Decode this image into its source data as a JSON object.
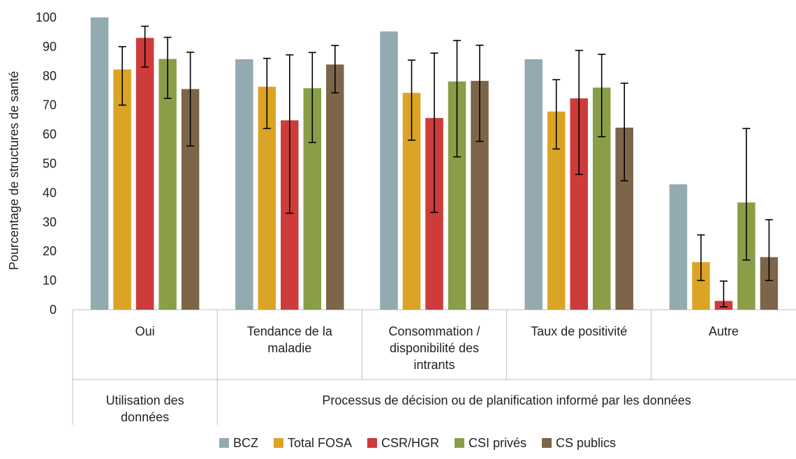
{
  "chart_data": {
    "type": "bar",
    "ylabel": "Pourcentage de structures de santé",
    "ylim": [
      0,
      100
    ],
    "yticks": [
      0,
      10,
      20,
      30,
      40,
      50,
      60,
      70,
      80,
      90,
      100
    ],
    "grid": false,
    "legend_position": "bottom",
    "categories": [
      [
        "Oui"
      ],
      [
        "Tendance de la",
        "maladie"
      ],
      [
        "Consommation /",
        "disponibilité des",
        "intrants"
      ],
      [
        "Taux de positivité"
      ],
      [
        "Autre"
      ]
    ],
    "groups": [
      {
        "label": [
          "Utilisation des",
          "données"
        ],
        "span": [
          0,
          0
        ]
      },
      {
        "label": [
          "Processus de décision ou de planification informé par les données"
        ],
        "span": [
          1,
          4
        ]
      }
    ],
    "series": [
      {
        "name": "BCZ",
        "color": "#93aab0",
        "values": [
          100,
          85.7,
          95.2,
          85.7,
          42.9
        ],
        "err_low": [
          null,
          null,
          null,
          null,
          null
        ],
        "err_high": [
          null,
          null,
          null,
          null,
          null
        ]
      },
      {
        "name": "Total FOSA",
        "color": "#dba425",
        "values": [
          82.2,
          76.3,
          74.2,
          67.8,
          16.3
        ],
        "err_low": [
          70,
          62,
          58,
          55,
          10
        ],
        "err_high": [
          90,
          86,
          85.4,
          78.7,
          25.6
        ]
      },
      {
        "name": "CSR/HGR",
        "color": "#cd3b3b",
        "values": [
          93,
          64.8,
          65.6,
          72.3,
          3
        ],
        "err_low": [
          83,
          33,
          33.3,
          46.3,
          1
        ],
        "err_high": [
          97,
          87.2,
          87.8,
          88.7,
          9.8
        ]
      },
      {
        "name": "CSI privés",
        "color": "#8a9e47",
        "values": [
          85.8,
          75.8,
          78.1,
          76,
          36.7
        ],
        "err_low": [
          72.3,
          57.2,
          52.3,
          59.2,
          17
        ],
        "err_high": [
          93.2,
          88,
          92.1,
          87.4,
          62
        ]
      },
      {
        "name": "CS publics",
        "color": "#7d6549",
        "values": [
          75.5,
          83.9,
          78.3,
          62.3,
          18
        ],
        "err_low": [
          56,
          74.2,
          57.6,
          44.1,
          10
        ],
        "err_high": [
          88.1,
          90.4,
          90.5,
          77.5,
          30.8
        ]
      }
    ]
  }
}
